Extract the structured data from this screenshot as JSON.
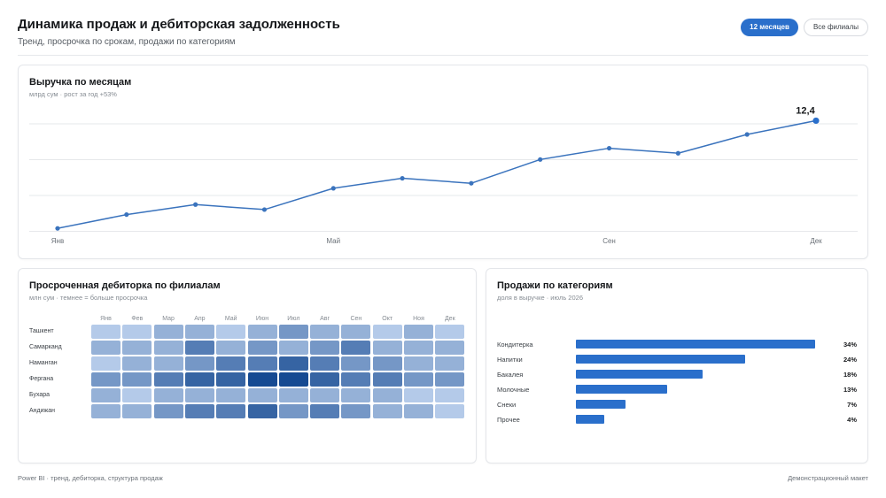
{
  "header": {
    "title": "Динамика продаж и дебиторская задолженность",
    "subtitle": "Тренд, просрочка по срокам, продажи по категориям",
    "filters": [
      {
        "label": "12 месяцев",
        "active": true
      },
      {
        "label": "Все филиалы",
        "active": false
      }
    ]
  },
  "colors": {
    "accent": "#2a6fcb",
    "line": "#3a73bd",
    "grid": "#e6e8eb",
    "heat_low": "#d4e4fa",
    "heat_high": "#164a92"
  },
  "revenue": {
    "title": "Выручка по месяцам",
    "subtitle": "млрд сум · рост за год +53%",
    "end_label": "12,4"
  },
  "heatmap": {
    "title": "Просроченная дебиторка по филиалам",
    "subtitle": "млн сум · темнее = больше просрочка"
  },
  "categories": {
    "title": "Продажи по категориям",
    "subtitle": "доля в выручке · июль 2026"
  },
  "chart_data": [
    {
      "type": "line",
      "title": "Выручка по месяцам",
      "x": [
        "Янв",
        "Фев",
        "Мар",
        "Апр",
        "Май",
        "Июн",
        "Июл",
        "Авг",
        "Сен",
        "Окт",
        "Ноя",
        "Дек"
      ],
      "x_tick_labels": [
        "Янв",
        "Май",
        "Сен",
        "Дек"
      ],
      "series": [
        {
          "values": [
            8.1,
            8.65,
            9.05,
            8.85,
            9.7,
            10.1,
            9.9,
            10.85,
            11.3,
            11.1,
            11.85,
            12.4
          ]
        }
      ],
      "ylim": [
        8.0,
        12.98
      ],
      "grid": true,
      "data_labels": [
        {
          "x": "Дек",
          "value": "12,4"
        }
      ]
    },
    {
      "type": "heatmap",
      "title": "Просроченная дебиторка по филиалам",
      "x": [
        "Янв",
        "Фев",
        "Мар",
        "Апр",
        "Май",
        "Июн",
        "Июл",
        "Авг",
        "Сен",
        "Окт",
        "Ноя",
        "Дек"
      ],
      "y": [
        "Ташкент",
        "Самарканд",
        "Наманган",
        "Фергана",
        "Бухара",
        "Андижан"
      ],
      "values": [
        [
          1,
          1,
          2,
          2,
          1,
          2,
          3,
          2,
          2,
          1,
          2,
          1
        ],
        [
          2,
          2,
          2,
          4,
          2,
          3,
          2,
          3,
          4,
          2,
          2,
          2
        ],
        [
          1,
          2,
          2,
          3,
          4,
          4,
          5,
          4,
          3,
          3,
          2,
          2
        ],
        [
          3,
          3,
          4,
          5,
          5,
          6,
          6,
          5,
          4,
          4,
          3,
          3
        ],
        [
          2,
          1,
          2,
          2,
          2,
          2,
          2,
          2,
          2,
          2,
          1,
          1
        ],
        [
          2,
          2,
          3,
          4,
          4,
          5,
          3,
          4,
          3,
          2,
          2,
          1
        ]
      ],
      "scale": [
        0,
        6
      ]
    },
    {
      "type": "bar",
      "orientation": "horizontal",
      "title": "Продажи по категориям",
      "categories": [
        "Кондитерка",
        "Напитки",
        "Бакалея",
        "Молочные",
        "Снеки",
        "Прочее"
      ],
      "values": [
        34,
        24,
        18,
        13,
        7,
        4
      ],
      "value_labels": [
        "34%",
        "24%",
        "18%",
        "13%",
        "7%",
        "4%"
      ],
      "xlim": [
        0,
        34
      ]
    }
  ],
  "footer": {
    "left": "Power BI · тренд, дебиторка, структура продаж",
    "right": "Демонстрационный макет"
  }
}
